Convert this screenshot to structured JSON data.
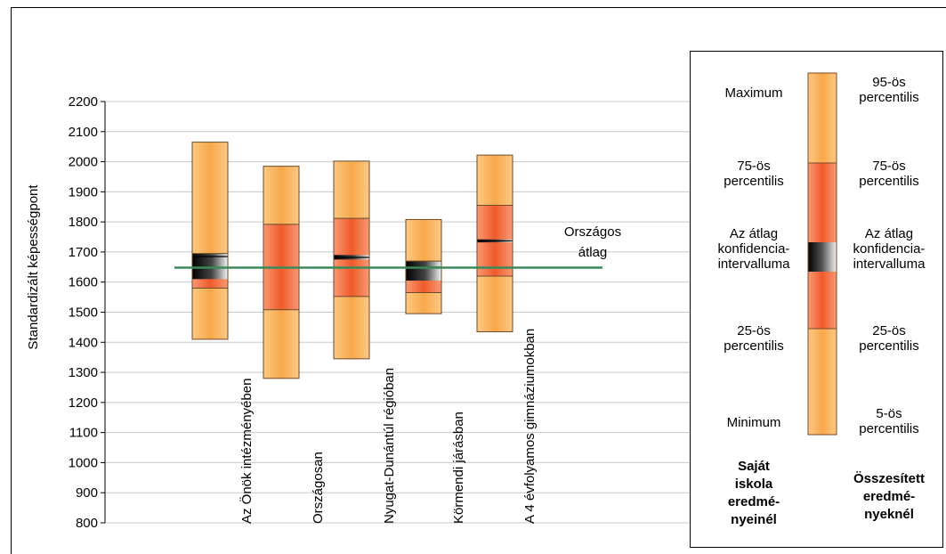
{
  "chart_data": {
    "type": "box",
    "ylabel": "Standardizált képességpont",
    "ylim": [
      800,
      2200
    ],
    "yticks": [
      800,
      900,
      1000,
      1100,
      1200,
      1300,
      1400,
      1500,
      1600,
      1700,
      1800,
      1900,
      2000,
      2100,
      2200
    ],
    "categories": [
      "Az Önök intézményében",
      "Országosan",
      "Nyugat-Dunántúl régióban",
      "Körmendi járásban",
      "A 4 évfolyamos gimnáziumokban"
    ],
    "series": [
      {
        "p5": 1410,
        "p25": 1580,
        "ci_low": 1610,
        "mean": 1685,
        "ci_high": 1695,
        "p75": 1695,
        "p95": 2065
      },
      {
        "p5": 1280,
        "p25": 1508,
        "ci_low": 1645,
        "mean": 1648,
        "ci_high": 1651,
        "p75": 1792,
        "p95": 1985
      },
      {
        "p5": 1345,
        "p25": 1552,
        "ci_low": 1675,
        "mean": 1682,
        "ci_high": 1690,
        "p75": 1812,
        "p95": 2002
      },
      {
        "p5": 1495,
        "p25": 1565,
        "ci_low": 1605,
        "mean": 1650,
        "ci_high": 1670,
        "p75": 1670,
        "p95": 1808
      },
      {
        "p5": 1435,
        "p25": 1620,
        "ci_low": 1732,
        "mean": 1737,
        "ci_high": 1742,
        "p75": 1855,
        "p95": 2022
      }
    ],
    "reference_line": {
      "label_line1": "Országos",
      "label_line2": "átlag",
      "value": 1648,
      "color": "#3a8a5a"
    },
    "colors": {
      "outer": "#f8b25c",
      "inner": "#f26a3a",
      "ci_dark": "#000000"
    },
    "legend": {
      "left_labels": [
        {
          "line1": "Maximum",
          "line2": ""
        },
        {
          "line1": "75-ös",
          "line2": "percentilis"
        },
        {
          "line1": "Az átlag",
          "line2": "konfidencia-",
          "line3": "intervalluma"
        },
        {
          "line1": "25-ös",
          "line2": "percentilis"
        },
        {
          "line1": "Minimum",
          "line2": ""
        }
      ],
      "right_labels": [
        {
          "line1": "95-ös",
          "line2": "percentilis"
        },
        {
          "line1": "75-ös",
          "line2": "percentilis"
        },
        {
          "line1": "Az átlag",
          "line2": "konfidencia-",
          "line3": "intervalluma"
        },
        {
          "line1": "25-ös",
          "line2": "percentilis"
        },
        {
          "line1": "5-ös",
          "line2": "percentilis"
        }
      ],
      "left_title": [
        "Saját",
        "iskola",
        "eredmé-",
        "nyeinél"
      ],
      "right_title": [
        "Összesített",
        "eredmé-",
        "nyeknél"
      ]
    }
  }
}
